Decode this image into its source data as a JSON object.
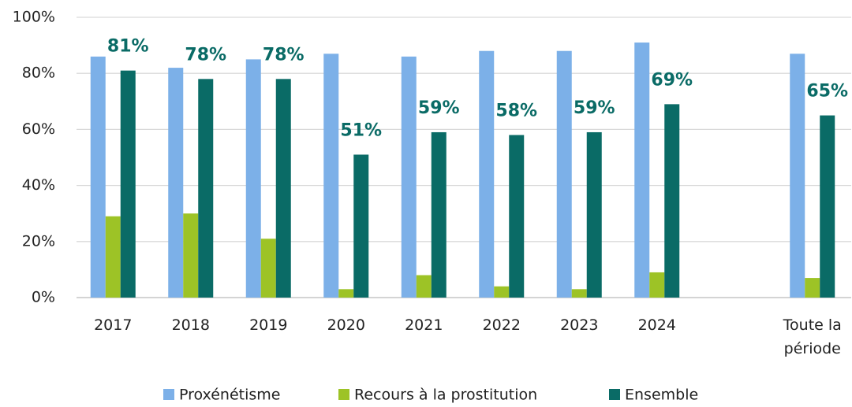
{
  "chart_data": {
    "type": "bar",
    "categories": [
      "2017",
      "2018",
      "2019",
      "2020",
      "2021",
      "2022",
      "2023",
      "2024",
      null,
      "Toute la période"
    ],
    "series": [
      {
        "name": "Proxénétisme",
        "color": "#7cb0e8",
        "values": [
          86,
          82,
          85,
          87,
          86,
          88,
          88,
          91,
          null,
          87
        ]
      },
      {
        "name": "Recours à la prostitution",
        "color": "#9dc326",
        "values": [
          29,
          30,
          21,
          3,
          8,
          4,
          3,
          9,
          null,
          7
        ]
      },
      {
        "name": "Ensemble",
        "color": "#0a6b66",
        "values": [
          81,
          78,
          78,
          51,
          59,
          58,
          59,
          69,
          null,
          65
        ],
        "value_labels": [
          "81%",
          "78%",
          "78%",
          "51%",
          "59%",
          "58%",
          "59%",
          "69%",
          null,
          "65%"
        ]
      }
    ],
    "ylim": [
      0,
      100
    ],
    "yticks": [
      {
        "value": 0,
        "label": "0%"
      },
      {
        "value": 20,
        "label": "20%"
      },
      {
        "value": 40,
        "label": "40%"
      },
      {
        "value": 60,
        "label": "60%"
      },
      {
        "value": 80,
        "label": "80%"
      },
      {
        "value": 100,
        "label": "100%"
      }
    ],
    "grid": true,
    "legend": "bottom"
  }
}
